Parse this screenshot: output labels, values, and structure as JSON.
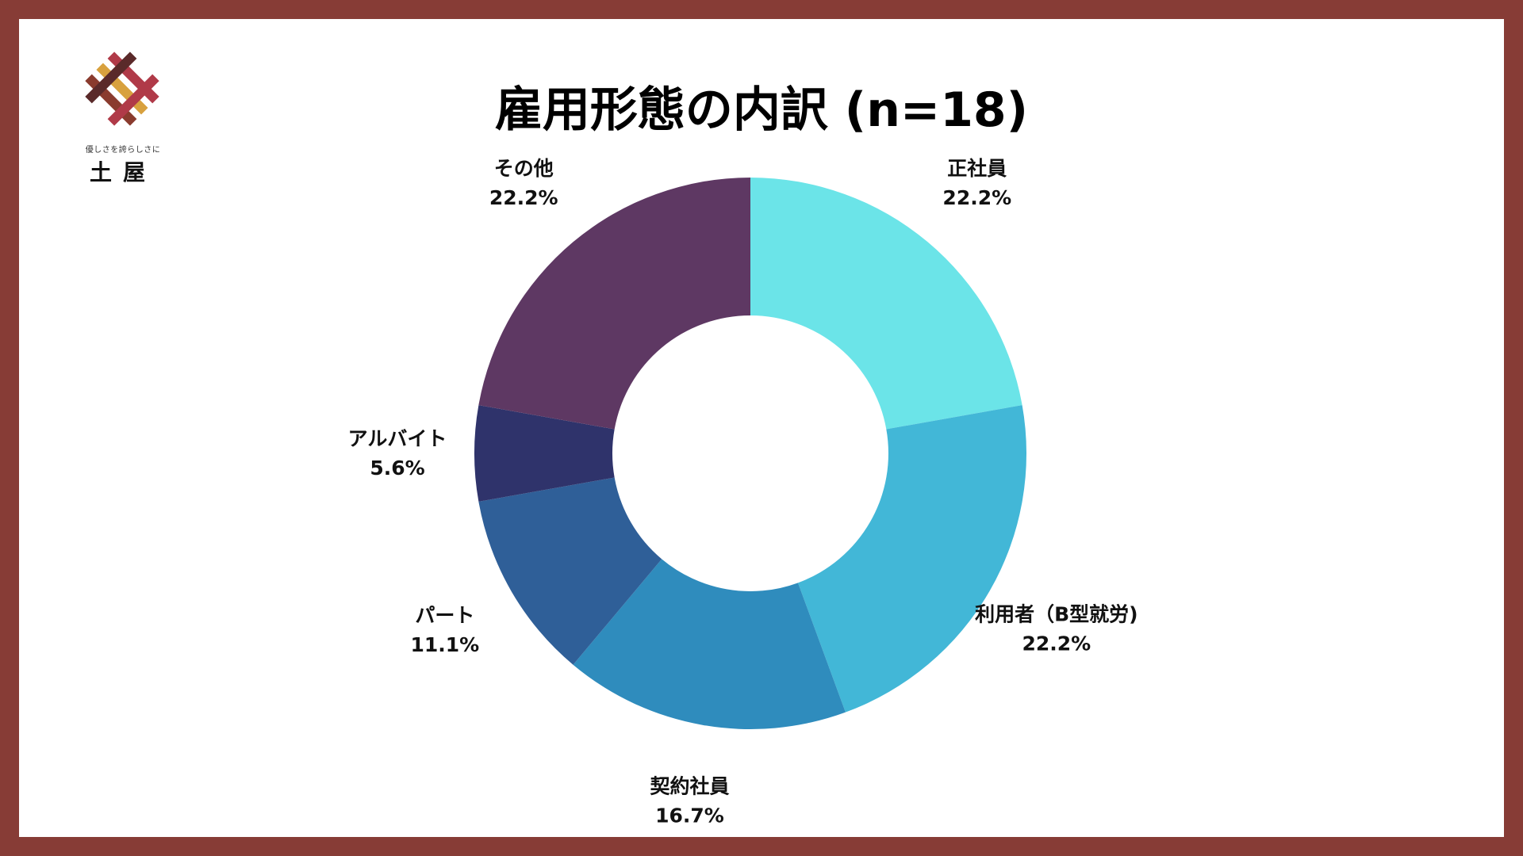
{
  "logo": {
    "tagline": "優しさを誇らしさに",
    "name": "土屋",
    "colors": [
      "#b03a48",
      "#d8a13e",
      "#8a3b2e",
      "#5a2a2a"
    ]
  },
  "chart_data": {
    "type": "pie",
    "title": "雇用形態の内訳 (n=18)",
    "donut": true,
    "slices": [
      {
        "label": "正社員",
        "value": 22.2,
        "display": "22.2%",
        "color": "#6be4e8"
      },
      {
        "label": "利用者（B型就労)",
        "value": 22.2,
        "display": "22.2%",
        "color": "#42b7d7"
      },
      {
        "label": "契約社員",
        "value": 16.7,
        "display": "16.7%",
        "color": "#2f8cbd"
      },
      {
        "label": "パート",
        "value": 11.1,
        "display": "11.1%",
        "color": "#2f5f98"
      },
      {
        "label": "アルバイト",
        "value": 5.6,
        "display": "5.6%",
        "color": "#2f336b"
      },
      {
        "label": "その他",
        "value": 22.2,
        "display": "22.2%",
        "color": "#5e3863"
      }
    ],
    "frame_color": "#873c36",
    "legend": "none"
  }
}
